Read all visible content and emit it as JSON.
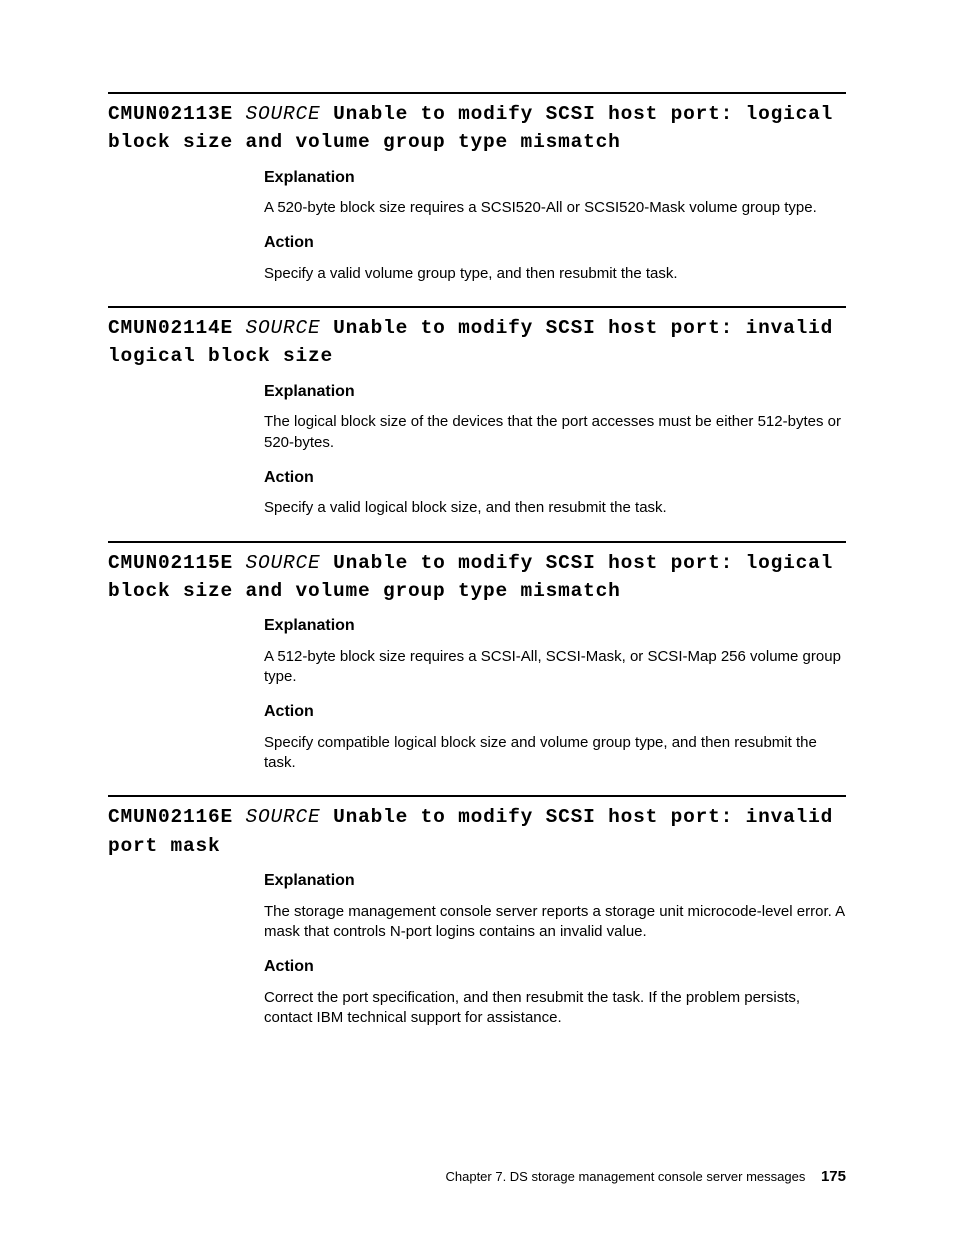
{
  "labels": {
    "explanation": "Explanation",
    "action": "Action",
    "source": "SOURCE"
  },
  "messages": [
    {
      "code": "CMUN02113E",
      "title": "Unable to modify SCSI host port: logical block size and volume group type mismatch",
      "explanation": "A 520-byte block size requires a SCSI520-All or SCSI520-Mask volume group type.",
      "action": "Specify a valid volume group type, and then resubmit the task."
    },
    {
      "code": "CMUN02114E",
      "title": "Unable to modify SCSI host port: invalid logical block size",
      "explanation": "The logical block size of the devices that the port accesses must be either 512-bytes or 520-bytes.",
      "action": "Specify a valid logical block size, and then resubmit the task."
    },
    {
      "code": "CMUN02115E",
      "title": "Unable to modify SCSI host port: logical block size and volume group type mismatch",
      "explanation": "A 512-byte block size requires a SCSI-All, SCSI-Mask, or SCSI-Map 256 volume group type.",
      "action": "Specify compatible logical block size and volume group type, and then resubmit the task."
    },
    {
      "code": "CMUN02116E",
      "title": "Unable to modify SCSI host port: invalid port mask",
      "explanation": "The storage management console server reports a storage unit microcode-level error. A mask that controls N-port logins contains an invalid value.",
      "action": "Correct the port specification, and then resubmit the task. If the problem persists, contact IBM technical support for assistance."
    }
  ],
  "footer": {
    "chapter": "Chapter 7. DS storage management console server messages",
    "page": "175"
  }
}
